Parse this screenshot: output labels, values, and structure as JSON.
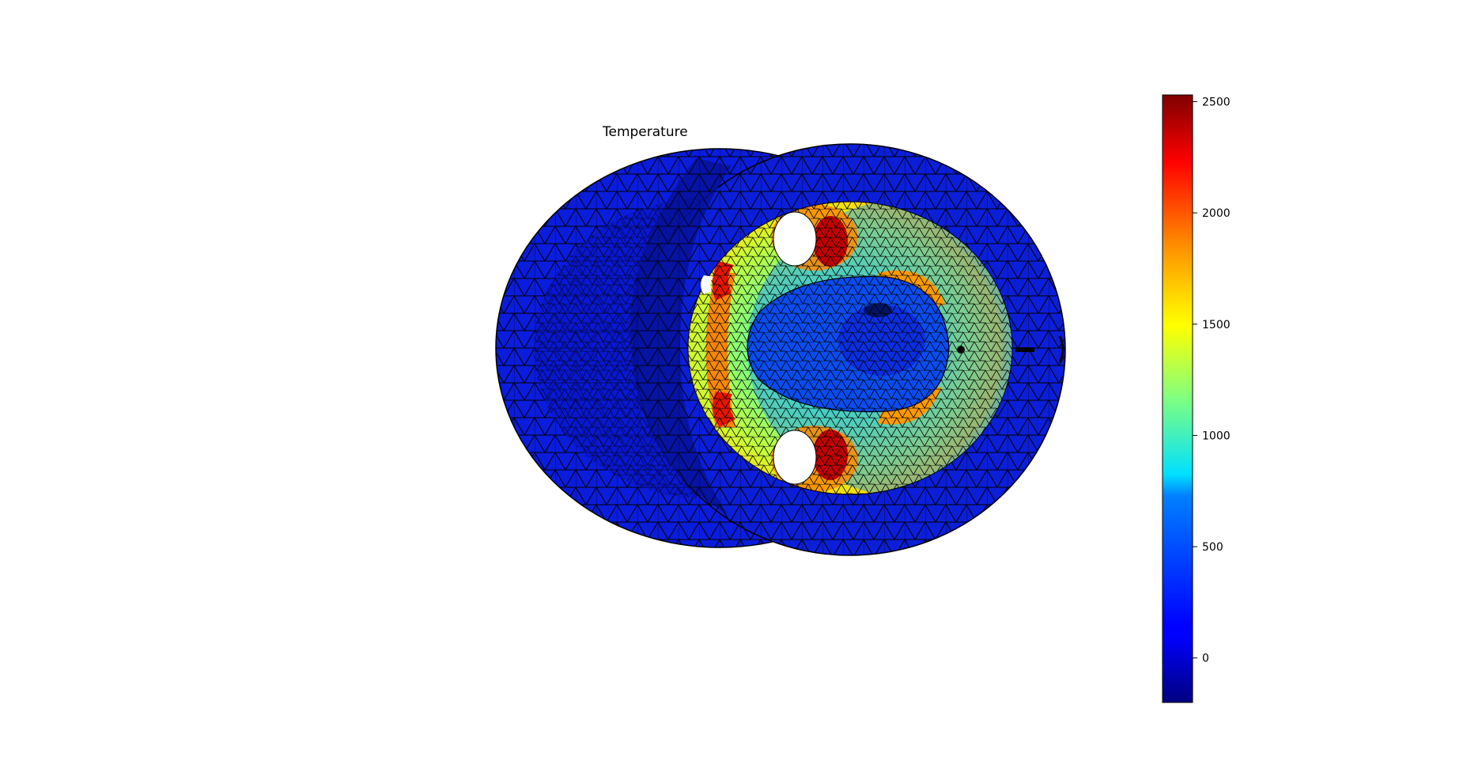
{
  "chart_data": {
    "type": "heatmap",
    "title": "Temperature",
    "colormap": "jet",
    "colorbar": {
      "vmin": -200,
      "vmax": 2530,
      "ticks": [
        0,
        500,
        1000,
        1500,
        2000,
        2500
      ],
      "tick_labels": [
        "0",
        "500",
        "1000",
        "1500",
        "2000",
        "2500"
      ]
    },
    "grid": false,
    "mesh": "triangulated"
  }
}
